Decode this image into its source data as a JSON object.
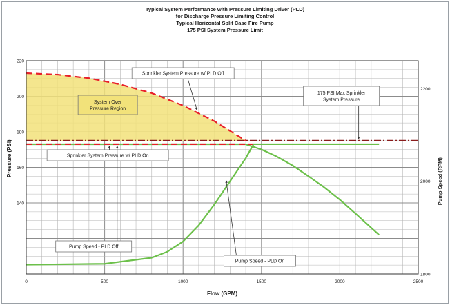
{
  "chart_data": {
    "type": "line",
    "title_lines": [
      "Typical System Performance with Pressure Limiting Driver (PLD)",
      "for Discharge Pressure Limiting Control",
      "Typical Horizontal Split Case Fire Pump",
      "175 PSI System Pressure Limit"
    ],
    "xlabel": "Flow (GPM)",
    "ylabel": "Pressure (PSI)",
    "y2label": "Pump Speed (RPM)",
    "xlim": [
      0,
      2500
    ],
    "ylim": [
      100,
      220
    ],
    "y2lim": [
      1800,
      2260
    ],
    "x_ticks": [
      "0",
      "500",
      "1000",
      "1500",
      "2000",
      "2500"
    ],
    "y_ticks": [
      {
        "label": "220",
        "value": 220
      },
      {
        "label": "200",
        "value": 200
      },
      {
        "label": "180",
        "value": 180
      },
      {
        "label": "160",
        "value": 160
      },
      {
        "label": "140",
        "value": 140
      }
    ],
    "y2_ticks": [
      {
        "label": "2200",
        "value": 2200
      },
      {
        "label": "2000",
        "value": 2000
      },
      {
        "label": "1800",
        "value": 1800
      }
    ],
    "grid": true,
    "series": [
      {
        "name": "Sprinkler System Pressure w/ PLD Off",
        "axis": "left",
        "style": "dashed",
        "color": "#e8202a",
        "x": [
          0,
          200,
          400,
          600,
          800,
          1000,
          1200,
          1400
        ],
        "y": [
          213,
          212.2,
          210.2,
          206.7,
          201.8,
          194.8,
          186,
          175
        ]
      },
      {
        "name": "Sprinkler System Pressure w/ PLD On",
        "axis": "left",
        "style": "solid",
        "color": "#6cc04a",
        "x": [
          0,
          1400,
          1500,
          1600,
          1700,
          1800,
          1900,
          2000,
          2100,
          2200,
          2250
        ],
        "y": [
          173,
          173,
          170.1,
          166,
          161,
          155,
          148.8,
          141.8,
          134,
          126,
          122
        ]
      },
      {
        "name": "175 PSI Max Sprinkler System Pressure",
        "axis": "left",
        "style": "dash-dot",
        "color": "#8a1c1c",
        "x": [
          0,
          2500
        ],
        "y": [
          175,
          175
        ]
      },
      {
        "name": "Pump Speed - PLD Off",
        "axis": "right",
        "style": "dashed",
        "color": "#e8202a",
        "x": [
          0,
          1450
        ],
        "y": [
          2080,
          2080
        ]
      },
      {
        "name": "Pump Speed - PLD On",
        "axis": "right",
        "style": "solid",
        "color": "#6cc04a",
        "x": [
          0,
          500,
          800,
          900,
          1000,
          1100,
          1200,
          1300,
          1400,
          1450,
          2250
        ],
        "y": [
          1820,
          1822,
          1835,
          1848,
          1870,
          1905,
          1950,
          2000,
          2050,
          2080,
          2080
        ]
      }
    ],
    "shaded_region": {
      "name": "System Over Pressure Region",
      "color": "#f2e27a",
      "between": "PLD Off pressure curve and 175 PSI line"
    },
    "annotations": {
      "pld_off_pressure": "Sprinkler System Pressure w/ PLD Off",
      "over_pressure": [
        "System Over",
        "Pressure Region"
      ],
      "max_pressure": [
        "175 PSI Max Sprinkler",
        "System Pressure"
      ],
      "pld_on_pressure": "Sprinkler System Pressure w/ PLD On",
      "speed_off": "Pump Speed - PLD Off",
      "speed_on": "Pump Speed - PLD On"
    }
  }
}
